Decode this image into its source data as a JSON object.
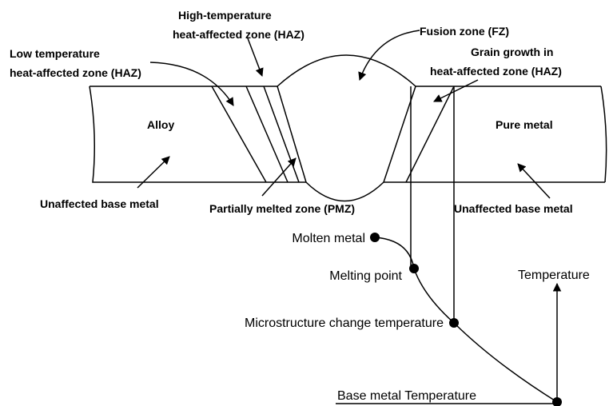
{
  "diagram": {
    "fusion_zone": "Fusion zone (FZ)",
    "high_temp_haz": [
      "High-temperature",
      "heat-affected zone (HAZ)"
    ],
    "low_temp_haz": [
      "Low temperature",
      "heat-affected zone (HAZ)"
    ],
    "grain_growth_haz": [
      "Grain growth in",
      "heat-affected zone (HAZ)"
    ],
    "left_metal": "Alloy",
    "right_metal": "Pure metal",
    "unaffected_left": "Unaffected base metal",
    "unaffected_right": "Unaffected base metal",
    "pmz": "Partially melted zone (PMZ)"
  },
  "temperature_curve": {
    "points": [
      "Molten metal",
      "Melting point",
      "Microstructure change temperature",
      "Base metal Temperature"
    ],
    "axis_label": "Temperature"
  }
}
